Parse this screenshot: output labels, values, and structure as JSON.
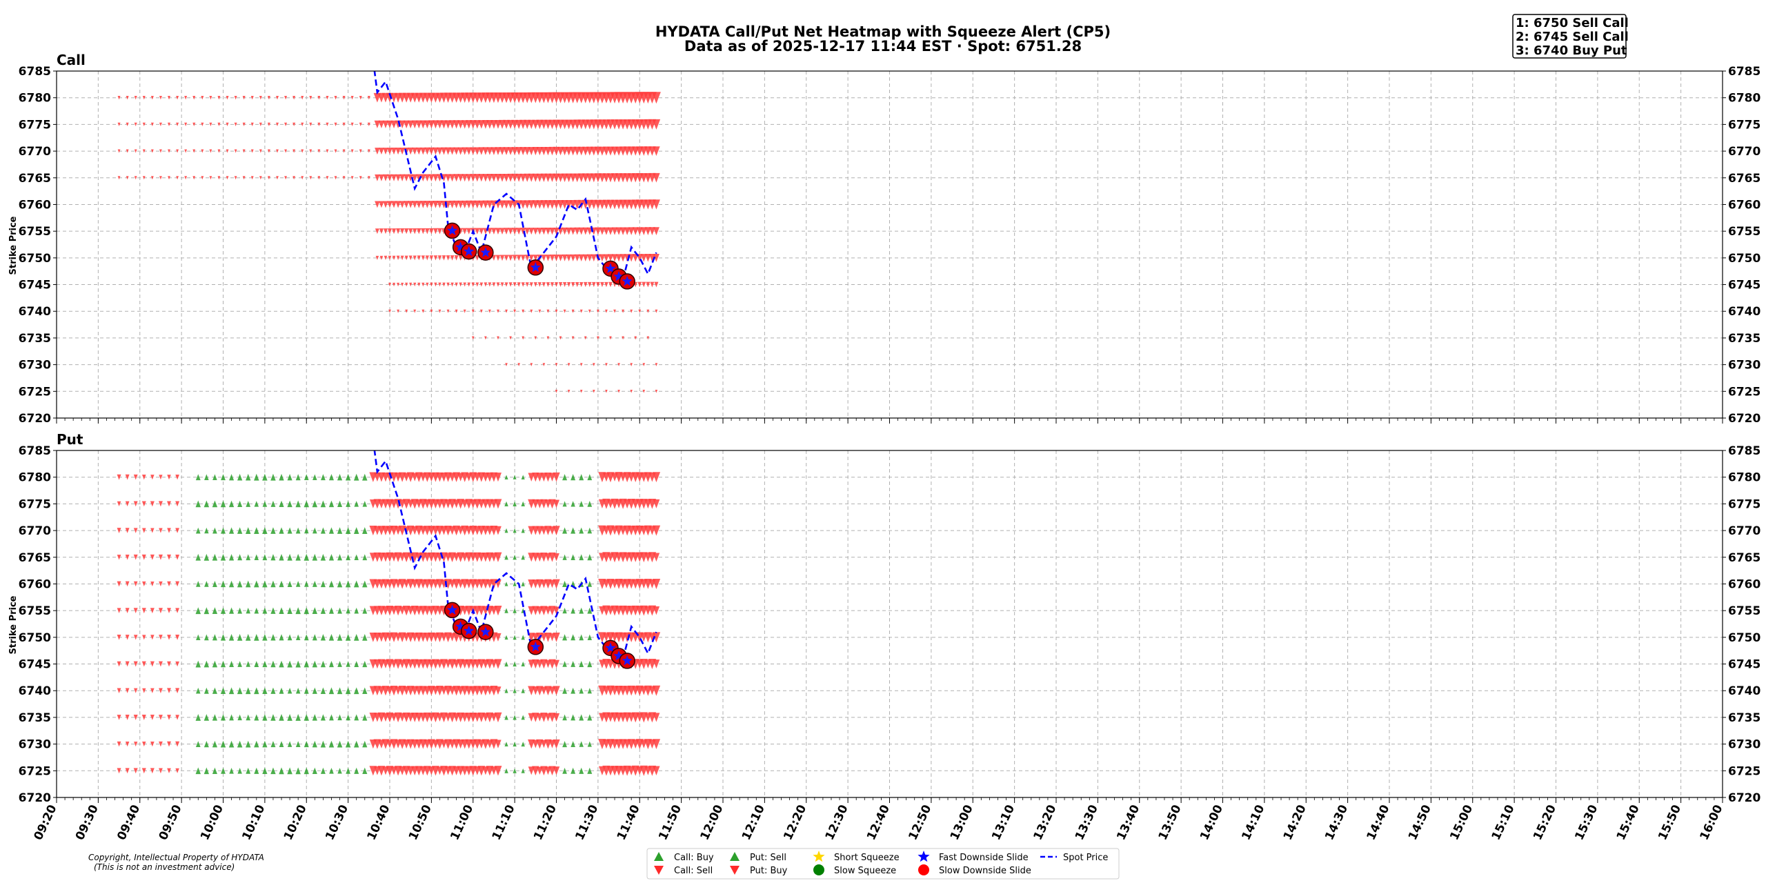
{
  "header": {
    "title_line1": "HYDATA Call/Put Net Heatmap with Squeeze Alert (CP5)",
    "title_line2": "Data as of 2025-12-17 11:44 EST · Spot: 6751.28"
  },
  "alerts": [
    "1: 6750 Sell Call",
    "2: 6745 Sell Call",
    "3: 6740 Buy Put"
  ],
  "copyright": [
    "Copyright, Intellectual Property of HYDATA",
    "(This is not an investment advice)"
  ],
  "legend": [
    {
      "label": "Call: Buy",
      "symbol": "triangle-up",
      "color": "#2ca02c"
    },
    {
      "label": "Call: Sell",
      "symbol": "triangle-down",
      "color": "#ff2a2a"
    },
    {
      "label": "Put: Sell",
      "symbol": "triangle-up",
      "color": "#2ca02c"
    },
    {
      "label": "Put: Buy",
      "symbol": "triangle-down",
      "color": "#ff2a2a"
    },
    {
      "label": "Short Squeeze",
      "symbol": "star",
      "color": "#ffd700"
    },
    {
      "label": "Slow Squeeze",
      "symbol": "circle",
      "color": "#008000"
    },
    {
      "label": "Fast Downside Slide",
      "symbol": "star",
      "color": "#0000ff"
    },
    {
      "label": "Slow Downside Slide",
      "symbol": "circle",
      "color": "#ff0000"
    },
    {
      "label": "Spot Price",
      "symbol": "dashed-line",
      "color": "#0000ff"
    }
  ],
  "chart_data": {
    "type": "scatter",
    "ylabel": "Strike Price",
    "xlabel": "",
    "x_ticks": [
      "09:20",
      "09:30",
      "09:40",
      "09:50",
      "10:00",
      "10:10",
      "10:20",
      "10:30",
      "10:40",
      "10:50",
      "11:00",
      "11:10",
      "11:20",
      "11:30",
      "11:40",
      "11:50",
      "12:00",
      "12:10",
      "12:20",
      "12:30",
      "12:40",
      "12:50",
      "13:00",
      "13:10",
      "13:20",
      "13:30",
      "13:40",
      "13:50",
      "14:00",
      "14:10",
      "14:20",
      "14:30",
      "14:40",
      "14:50",
      "15:00",
      "15:10",
      "15:20",
      "15:30",
      "15:40",
      "15:50",
      "16:00"
    ],
    "xlim": [
      "09:20",
      "16:00"
    ],
    "ylim": [
      6720,
      6785
    ],
    "y_ticks": [
      6720,
      6725,
      6730,
      6735,
      6740,
      6745,
      6750,
      6755,
      6760,
      6765,
      6770,
      6775,
      6780,
      6785
    ],
    "grid": true,
    "panels": [
      {
        "name": "Call",
        "strikes": [
          {
            "strike": 6780,
            "segments": [
              {
                "from": "09:35",
                "to": "10:35",
                "every_min": 2,
                "dir": "down",
                "size": 0.1
              },
              {
                "from": "10:37",
                "to": "11:44",
                "every_min": 1,
                "dir": "down",
                "size_from": 0.75,
                "size_to": 1.0
              }
            ]
          },
          {
            "strike": 6775,
            "segments": [
              {
                "from": "09:35",
                "to": "10:35",
                "every_min": 2,
                "dir": "down",
                "size": 0.1
              },
              {
                "from": "10:37",
                "to": "11:44",
                "every_min": 1,
                "dir": "down",
                "size_from": 0.55,
                "size_to": 0.85
              }
            ]
          },
          {
            "strike": 6770,
            "segments": [
              {
                "from": "09:35",
                "to": "10:35",
                "every_min": 2,
                "dir": "down",
                "size": 0.08
              },
              {
                "from": "10:37",
                "to": "11:44",
                "every_min": 1,
                "dir": "down",
                "size_from": 0.45,
                "size_to": 0.75
              }
            ]
          },
          {
            "strike": 6765,
            "segments": [
              {
                "from": "09:35",
                "to": "10:35",
                "every_min": 2,
                "dir": "down",
                "size": 0.08
              },
              {
                "from": "10:37",
                "to": "11:44",
                "every_min": 1,
                "dir": "down",
                "size_from": 0.45,
                "size_to": 0.75
              }
            ]
          },
          {
            "strike": 6760,
            "segments": [
              {
                "from": "10:37",
                "to": "11:44",
                "every_min": 1,
                "dir": "down",
                "size_from": 0.45,
                "size_to": 0.8
              }
            ]
          },
          {
            "strike": 6755,
            "segments": [
              {
                "from": "10:37",
                "to": "11:44",
                "every_min": 1,
                "dir": "down",
                "size_from": 0.3,
                "size_to": 0.6
              }
            ]
          },
          {
            "strike": 6750,
            "segments": [
              {
                "from": "10:37",
                "to": "11:44",
                "every_min": 1,
                "dir": "down",
                "size_from": 0.15,
                "size_to": 0.6
              }
            ]
          },
          {
            "strike": 6745,
            "segments": [
              {
                "from": "10:40",
                "to": "11:44",
                "every_min": 1,
                "dir": "down",
                "size_from": 0.1,
                "size_to": 0.3
              }
            ]
          },
          {
            "strike": 6740,
            "segments": [
              {
                "from": "10:40",
                "to": "11:44",
                "every_min": 2,
                "dir": "down",
                "size": 0.08
              }
            ]
          },
          {
            "strike": 6735,
            "segments": [
              {
                "from": "11:00",
                "to": "11:44",
                "every_min": 3,
                "dir": "down",
                "size": 0.06
              }
            ]
          },
          {
            "strike": 6730,
            "segments": [
              {
                "from": "11:08",
                "to": "11:44",
                "every_min": 3,
                "dir": "down",
                "size": 0.06
              }
            ]
          },
          {
            "strike": 6725,
            "segments": [
              {
                "from": "11:20",
                "to": "11:44",
                "every_min": 3,
                "dir": "down",
                "size": 0.05
              }
            ]
          }
        ]
      },
      {
        "name": "Put",
        "pattern": [
          {
            "from": "09:35",
            "to": "09:49",
            "every_min": 2,
            "dir": "down",
            "size": 0.3
          },
          {
            "from": "09:54",
            "to": "10:35",
            "every_min": 2,
            "dir": "up",
            "size": 0.45
          },
          {
            "from": "10:36",
            "to": "11:06",
            "every_min": 1,
            "dir": "down",
            "size": 0.8
          },
          {
            "from": "11:08",
            "to": "11:13",
            "every_min": 2,
            "dir": "up",
            "size": 0.25
          },
          {
            "from": "11:14",
            "to": "11:20",
            "every_min": 1,
            "dir": "down",
            "size": 0.75
          },
          {
            "from": "11:22",
            "to": "11:29",
            "every_min": 2,
            "dir": "up",
            "size": 0.4
          },
          {
            "from": "11:31",
            "to": "11:44",
            "every_min": 1,
            "dir": "down",
            "size": 0.85
          }
        ],
        "strikes": [
          6780,
          6775,
          6770,
          6765,
          6760,
          6755,
          6750,
          6745,
          6740,
          6735,
          6730,
          6725
        ]
      }
    ],
    "spot_price": [
      {
        "t": "10:36",
        "y": 6787
      },
      {
        "t": "10:37",
        "y": 6781
      },
      {
        "t": "10:39",
        "y": 6783
      },
      {
        "t": "10:42",
        "y": 6776
      },
      {
        "t": "10:46",
        "y": 6763
      },
      {
        "t": "10:48",
        "y": 6766
      },
      {
        "t": "10:51",
        "y": 6769
      },
      {
        "t": "10:53",
        "y": 6764
      },
      {
        "t": "10:54",
        "y": 6756
      },
      {
        "t": "10:56",
        "y": 6752
      },
      {
        "t": "10:58",
        "y": 6751
      },
      {
        "t": "11:00",
        "y": 6755
      },
      {
        "t": "11:02",
        "y": 6751
      },
      {
        "t": "11:05",
        "y": 6760
      },
      {
        "t": "11:08",
        "y": 6762
      },
      {
        "t": "11:11",
        "y": 6760
      },
      {
        "t": "11:13",
        "y": 6752
      },
      {
        "t": "11:14",
        "y": 6748
      },
      {
        "t": "11:16",
        "y": 6750
      },
      {
        "t": "11:20",
        "y": 6754
      },
      {
        "t": "11:23",
        "y": 6760
      },
      {
        "t": "11:25",
        "y": 6759
      },
      {
        "t": "11:27",
        "y": 6761
      },
      {
        "t": "11:30",
        "y": 6750
      },
      {
        "t": "11:32",
        "y": 6748
      },
      {
        "t": "11:34",
        "y": 6746
      },
      {
        "t": "11:36",
        "y": 6746
      },
      {
        "t": "11:38",
        "y": 6752
      },
      {
        "t": "11:40",
        "y": 6750
      },
      {
        "t": "11:42",
        "y": 6747
      },
      {
        "t": "11:44",
        "y": 6751
      }
    ],
    "slide_markers": [
      {
        "t": "10:55",
        "y": 6755.1
      },
      {
        "t": "10:57",
        "y": 6752.0
      },
      {
        "t": "10:59",
        "y": 6751.2
      },
      {
        "t": "11:03",
        "y": 6751.0
      },
      {
        "t": "11:15",
        "y": 6748.2
      },
      {
        "t": "11:33",
        "y": 6748.0
      },
      {
        "t": "11:35",
        "y": 6746.5
      },
      {
        "t": "11:37",
        "y": 6745.6
      }
    ]
  }
}
